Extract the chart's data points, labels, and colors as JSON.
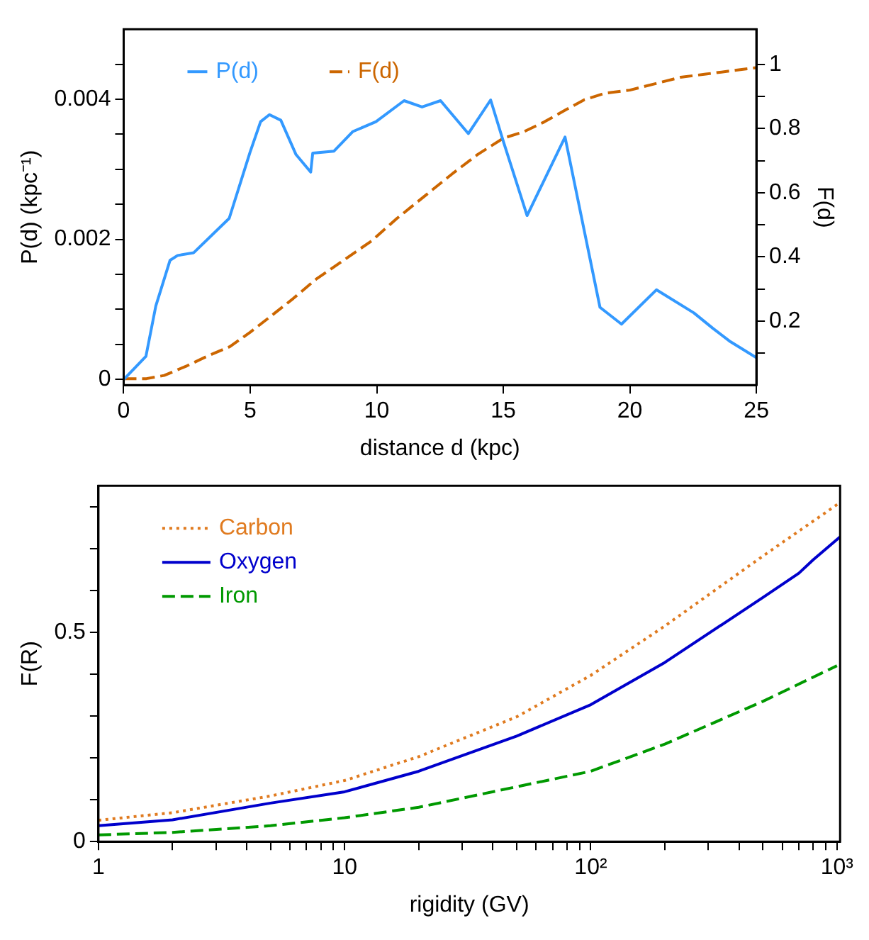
{
  "chart_data": [
    {
      "type": "line",
      "xlabel": "distance d (kpc)",
      "ylabel": "P(d) (kpc⁻¹)",
      "y2label": "F(d)",
      "legend": "top left",
      "grid": false,
      "marker": "none",
      "xlim": [
        0,
        25
      ],
      "xticks": [
        0,
        5,
        10,
        15,
        20,
        25
      ],
      "ylim": [
        -8e-05,
        0.005
      ],
      "yticks": [
        0,
        {
          "value": 0.0005,
          "label": null
        },
        {
          "value": 0.001,
          "label": null
        },
        {
          "value": 0.0015,
          "label": null
        },
        0.002,
        {
          "value": 0.0025,
          "label": null
        },
        {
          "value": 0.003,
          "label": null
        },
        {
          "value": 0.0035,
          "label": null
        },
        0.004,
        {
          "value": 0.0045,
          "label": null
        }
      ],
      "y2lim": [
        0,
        1.11
      ],
      "y2ticks": [
        {
          "value": 0.1,
          "label": null
        },
        0.2,
        {
          "value": 0.3,
          "label": null
        },
        0.4,
        {
          "value": 0.5,
          "label": null
        },
        0.6,
        {
          "value": 0.7,
          "label": null
        },
        0.8,
        {
          "value": 0.9,
          "label": null
        },
        1
      ],
      "series": [
        {
          "name": "P(d)",
          "color": "#3399ff",
          "line_style": "solid",
          "x": [
            0,
            0.88,
            1.27,
            1.83,
            2.13,
            2.77,
            4.17,
            4.99,
            5.41,
            5.76,
            6.21,
            6.81,
            7.39,
            7.47,
            8.31,
            9.06,
            9.97,
            11.08,
            11.79,
            12.52,
            13.62,
            14.5,
            15.01,
            15.94,
            17.44,
            18.82,
            19.67,
            21.05,
            22.53,
            23.28,
            23.93,
            25
          ],
          "values": [
            0,
            0.00033,
            0.00105,
            0.0017,
            0.00177,
            0.00181,
            0.0023,
            0.00324,
            0.00368,
            0.00378,
            0.0037,
            0.00321,
            0.00296,
            0.00323,
            0.00326,
            0.00354,
            0.00368,
            0.00398,
            0.00389,
            0.00398,
            0.00351,
            0.00399,
            0.00339,
            0.00234,
            0.00346,
            0.00103,
            0.00079,
            0.00128,
            0.00095,
            0.00073,
            0.00055,
            0.00031
          ]
        },
        {
          "name": "F(d)",
          "color": "#cc6600",
          "line_style": "dashed",
          "axis": "y2",
          "x": [
            0,
            0.9,
            1.6,
            2.5,
            3.3,
            4.2,
            5,
            5.9,
            6.7,
            7.6,
            8.7,
            9.8,
            10.8,
            11.9,
            13,
            14,
            15,
            15.8,
            16.6,
            17.5,
            18.2,
            19,
            20,
            21,
            22,
            23,
            24,
            25
          ],
          "values": [
            0.02,
            0.02,
            0.03,
            0.06,
            0.09,
            0.12,
            0.165,
            0.22,
            0.27,
            0.33,
            0.39,
            0.45,
            0.52,
            0.59,
            0.66,
            0.72,
            0.77,
            0.79,
            0.82,
            0.86,
            0.89,
            0.91,
            0.92,
            0.94,
            0.96,
            0.97,
            0.98,
            0.99
          ]
        }
      ]
    },
    {
      "type": "line",
      "xlabel": "rigidity (GV)",
      "ylabel": "F(R)",
      "legend": "top left",
      "grid": false,
      "marker": "none",
      "log": "x",
      "xlim": [
        1,
        1030
      ],
      "xticks": [
        1,
        {
          "value": 2,
          "label": null
        },
        {
          "value": 3,
          "label": null
        },
        {
          "value": 4,
          "label": null
        },
        {
          "value": 5,
          "label": null
        },
        {
          "value": 6,
          "label": null
        },
        {
          "value": 7,
          "label": null
        },
        {
          "value": 8,
          "label": null
        },
        {
          "value": 9,
          "label": null
        },
        10,
        {
          "value": 20,
          "label": null
        },
        {
          "value": 30,
          "label": null
        },
        {
          "value": 40,
          "label": null
        },
        {
          "value": 50,
          "label": null
        },
        {
          "value": 60,
          "label": null
        },
        {
          "value": 70,
          "label": null
        },
        {
          "value": 80,
          "label": null
        },
        {
          "value": 90,
          "label": null
        },
        {
          "value": 100,
          "label": "10²"
        },
        {
          "value": 200,
          "label": null
        },
        {
          "value": 300,
          "label": null
        },
        {
          "value": 400,
          "label": null
        },
        {
          "value": 500,
          "label": null
        },
        {
          "value": 600,
          "label": null
        },
        {
          "value": 700,
          "label": null
        },
        {
          "value": 800,
          "label": null
        },
        {
          "value": 900,
          "label": null
        },
        {
          "value": 1000,
          "label": "10³"
        }
      ],
      "ylim": [
        0,
        0.85
      ],
      "yticks": [
        0,
        {
          "value": 0.1,
          "label": null
        },
        {
          "value": 0.2,
          "label": null
        },
        {
          "value": 0.3,
          "label": null
        },
        {
          "value": 0.4,
          "label": null
        },
        0.5,
        {
          "value": 0.6,
          "label": null
        },
        {
          "value": 0.7,
          "label": null
        },
        {
          "value": 0.8,
          "label": null
        }
      ],
      "series": [
        {
          "name": "Carbon",
          "color": "#e07b20",
          "line_style": "dotted",
          "x": [
            1,
            2,
            5,
            10,
            20,
            50,
            100,
            200,
            500,
            1030
          ],
          "values": [
            0.051,
            0.069,
            0.109,
            0.146,
            0.203,
            0.298,
            0.397,
            0.515,
            0.682,
            0.81
          ]
        },
        {
          "name": "Oxygen",
          "color": "#0000cc",
          "line_style": "solid",
          "x": [
            1,
            2,
            5,
            10,
            20,
            50,
            100,
            200,
            500,
            700,
            800,
            1030
          ],
          "values": [
            0.038,
            0.052,
            0.092,
            0.119,
            0.168,
            0.252,
            0.327,
            0.428,
            0.583,
            0.641,
            0.673,
            0.728
          ]
        },
        {
          "name": "Iron",
          "color": "#009900",
          "line_style": "dashed",
          "x": [
            1,
            2,
            5,
            10,
            20,
            50,
            100,
            200,
            500,
            1000
          ],
          "values": [
            0.016,
            0.022,
            0.038,
            0.057,
            0.082,
            0.131,
            0.168,
            0.233,
            0.335,
            0.42
          ]
        }
      ]
    }
  ]
}
